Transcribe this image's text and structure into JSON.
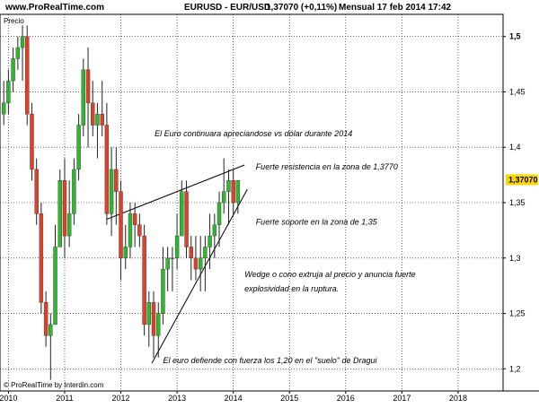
{
  "header": {
    "site": "www.ProRealTime.com",
    "instrument": "EURUSD - EUR/USD",
    "price_change": "1,37070 (+0,11%)",
    "period_date": "Mensual  17 feb 2014 17:42"
  },
  "footer": {
    "credit": "© ProRealTime by Interdin.com"
  },
  "chart_data": {
    "type": "candlestick",
    "title": "EURUSD - EUR/USD",
    "ylabel": "Precio",
    "ylim": [
      1.18,
      1.52
    ],
    "xlim": [
      2009.85,
      2018.8
    ],
    "y_ticks": [
      "1,5",
      "1,45",
      "1,4",
      "1,35",
      "1,3",
      "1,25",
      "1,2"
    ],
    "y_tick_values": [
      1.5,
      1.45,
      1.4,
      1.35,
      1.3,
      1.25,
      1.2
    ],
    "x_ticks": [
      "2010",
      "2011",
      "2012",
      "2013",
      "2014",
      "2015",
      "2016",
      "2017",
      "2018"
    ],
    "x_tick_values": [
      2010,
      2011,
      2012,
      2013,
      2014,
      2015,
      2016,
      2017,
      2018
    ],
    "last_price_label": "1,37070",
    "last_price": 1.3707,
    "colors": {
      "up": "#2db82d",
      "down": "#e0402a",
      "label_bg": "#ffd700",
      "grid": "#000000"
    },
    "candles": [
      {
        "t": 2009.917,
        "o": 1.43,
        "h": 1.46,
        "l": 1.42,
        "c": 1.44
      },
      {
        "t": 2010.0,
        "o": 1.44,
        "h": 1.47,
        "l": 1.43,
        "c": 1.46
      },
      {
        "t": 2010.083,
        "o": 1.46,
        "h": 1.49,
        "l": 1.45,
        "c": 1.48
      },
      {
        "t": 2010.167,
        "o": 1.48,
        "h": 1.5,
        "l": 1.47,
        "c": 1.49
      },
      {
        "t": 2010.25,
        "o": 1.49,
        "h": 1.51,
        "l": 1.46,
        "c": 1.5
      },
      {
        "t": 2010.333,
        "o": 1.5,
        "h": 1.51,
        "l": 1.42,
        "c": 1.43
      },
      {
        "t": 2010.417,
        "o": 1.43,
        "h": 1.44,
        "l": 1.37,
        "c": 1.38
      },
      {
        "t": 2010.5,
        "o": 1.38,
        "h": 1.39,
        "l": 1.33,
        "c": 1.34
      },
      {
        "t": 2010.583,
        "o": 1.34,
        "h": 1.35,
        "l": 1.25,
        "c": 1.26
      },
      {
        "t": 2010.667,
        "o": 1.26,
        "h": 1.27,
        "l": 1.22,
        "c": 1.23
      },
      {
        "t": 2010.75,
        "o": 1.23,
        "h": 1.25,
        "l": 1.19,
        "c": 1.24
      },
      {
        "t": 2010.833,
        "o": 1.24,
        "h": 1.33,
        "l": 1.24,
        "c": 1.31
      },
      {
        "t": 2010.917,
        "o": 1.31,
        "h": 1.38,
        "l": 1.31,
        "c": 1.37
      },
      {
        "t": 2011.0,
        "o": 1.37,
        "h": 1.39,
        "l": 1.3,
        "c": 1.32
      },
      {
        "t": 2011.083,
        "o": 1.32,
        "h": 1.37,
        "l": 1.31,
        "c": 1.34
      },
      {
        "t": 2011.167,
        "o": 1.34,
        "h": 1.39,
        "l": 1.33,
        "c": 1.38
      },
      {
        "t": 2011.25,
        "o": 1.38,
        "h": 1.43,
        "l": 1.37,
        "c": 1.42
      },
      {
        "t": 2011.333,
        "o": 1.42,
        "h": 1.48,
        "l": 1.41,
        "c": 1.47
      },
      {
        "t": 2011.417,
        "o": 1.47,
        "h": 1.49,
        "l": 1.4,
        "c": 1.44
      },
      {
        "t": 2011.5,
        "o": 1.44,
        "h": 1.46,
        "l": 1.41,
        "c": 1.42
      },
      {
        "t": 2011.583,
        "o": 1.42,
        "h": 1.44,
        "l": 1.39,
        "c": 1.43
      },
      {
        "t": 2011.667,
        "o": 1.43,
        "h": 1.46,
        "l": 1.41,
        "c": 1.42
      },
      {
        "t": 2011.75,
        "o": 1.42,
        "h": 1.44,
        "l": 1.33,
        "c": 1.34
      },
      {
        "t": 2011.833,
        "o": 1.34,
        "h": 1.4,
        "l": 1.32,
        "c": 1.38
      },
      {
        "t": 2011.917,
        "o": 1.38,
        "h": 1.4,
        "l": 1.33,
        "c": 1.36
      },
      {
        "t": 2012.0,
        "o": 1.36,
        "h": 1.37,
        "l": 1.28,
        "c": 1.3
      },
      {
        "t": 2012.083,
        "o": 1.3,
        "h": 1.33,
        "l": 1.29,
        "c": 1.31
      },
      {
        "t": 2012.167,
        "o": 1.31,
        "h": 1.35,
        "l": 1.3,
        "c": 1.34
      },
      {
        "t": 2012.25,
        "o": 1.34,
        "h": 1.35,
        "l": 1.31,
        "c": 1.33
      },
      {
        "t": 2012.333,
        "o": 1.33,
        "h": 1.34,
        "l": 1.31,
        "c": 1.32
      },
      {
        "t": 2012.417,
        "o": 1.32,
        "h": 1.33,
        "l": 1.23,
        "c": 1.24
      },
      {
        "t": 2012.5,
        "o": 1.24,
        "h": 1.27,
        "l": 1.22,
        "c": 1.26
      },
      {
        "t": 2012.583,
        "o": 1.26,
        "h": 1.27,
        "l": 1.21,
        "c": 1.23
      },
      {
        "t": 2012.667,
        "o": 1.23,
        "h": 1.26,
        "l": 1.21,
        "c": 1.25
      },
      {
        "t": 2012.75,
        "o": 1.25,
        "h": 1.31,
        "l": 1.24,
        "c": 1.29
      },
      {
        "t": 2012.833,
        "o": 1.29,
        "h": 1.31,
        "l": 1.27,
        "c": 1.3
      },
      {
        "t": 2012.917,
        "o": 1.3,
        "h": 1.31,
        "l": 1.27,
        "c": 1.3
      },
      {
        "t": 2013.0,
        "o": 1.3,
        "h": 1.34,
        "l": 1.29,
        "c": 1.32
      },
      {
        "t": 2013.083,
        "o": 1.32,
        "h": 1.37,
        "l": 1.32,
        "c": 1.36
      },
      {
        "t": 2013.167,
        "o": 1.36,
        "h": 1.37,
        "l": 1.3,
        "c": 1.31
      },
      {
        "t": 2013.25,
        "o": 1.31,
        "h": 1.32,
        "l": 1.28,
        "c": 1.3
      },
      {
        "t": 2013.333,
        "o": 1.3,
        "h": 1.32,
        "l": 1.28,
        "c": 1.29
      },
      {
        "t": 2013.417,
        "o": 1.29,
        "h": 1.32,
        "l": 1.27,
        "c": 1.3
      },
      {
        "t": 2013.5,
        "o": 1.3,
        "h": 1.32,
        "l": 1.27,
        "c": 1.31
      },
      {
        "t": 2013.583,
        "o": 1.31,
        "h": 1.34,
        "l": 1.29,
        "c": 1.32
      },
      {
        "t": 2013.667,
        "o": 1.32,
        "h": 1.34,
        "l": 1.3,
        "c": 1.33
      },
      {
        "t": 2013.75,
        "o": 1.33,
        "h": 1.36,
        "l": 1.31,
        "c": 1.35
      },
      {
        "t": 2013.833,
        "o": 1.35,
        "h": 1.39,
        "l": 1.34,
        "c": 1.36
      },
      {
        "t": 2013.917,
        "o": 1.36,
        "h": 1.38,
        "l": 1.33,
        "c": 1.37
      },
      {
        "t": 2014.0,
        "o": 1.37,
        "h": 1.38,
        "l": 1.34,
        "c": 1.35
      },
      {
        "t": 2014.083,
        "o": 1.35,
        "h": 1.37,
        "l": 1.34,
        "c": 1.37
      }
    ],
    "trendlines": [
      {
        "name": "resistencia",
        "x1": 2011.75,
        "y1": 1.335,
        "x2": 2014.2,
        "y2": 1.384
      },
      {
        "name": "soporte",
        "x1": 2012.55,
        "y1": 1.205,
        "x2": 2014.25,
        "y2": 1.362
      }
    ],
    "annotations": [
      {
        "text": "El Euro continuara apreciandose vs dólar durante 2014",
        "x": 2012.6,
        "y": 1.41
      },
      {
        "text": "Fuerte resistencia en la zona de 1,3770",
        "x": 2014.4,
        "y": 1.38
      },
      {
        "text": "Fuerte soporte en la zona de 1,35",
        "x": 2014.4,
        "y": 1.33
      },
      {
        "text": "Wedge o cono extruja al precio y anuncia fuerte",
        "x": 2014.2,
        "y": 1.283
      },
      {
        "text": "explosividad en la ruptura.",
        "x": 2014.2,
        "y": 1.27
      },
      {
        "text": "El euro defiende con fuerza los 1,20 en el \"suelo\" de Dragui",
        "x": 2012.75,
        "y": 1.205
      }
    ]
  }
}
